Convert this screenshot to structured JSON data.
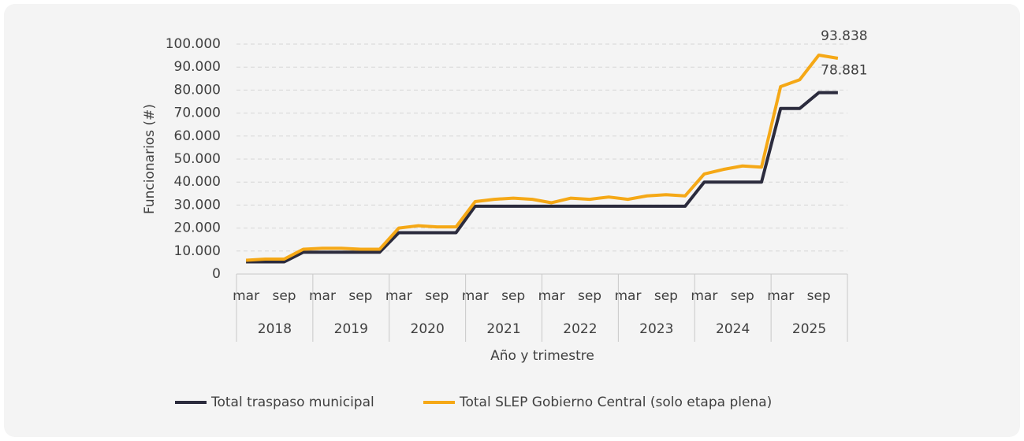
{
  "chart_data": {
    "type": "line",
    "x_label": "Año y trimestre",
    "y_label": "Funcionarios (#)",
    "categories": [
      "mar",
      null,
      "sep",
      null,
      "mar",
      null,
      "sep",
      null,
      "mar",
      null,
      "sep",
      null,
      "mar",
      null,
      "sep",
      null,
      "mar",
      null,
      "sep",
      null,
      "mar",
      null,
      "sep",
      null,
      "mar",
      null,
      "sep",
      null,
      "mar",
      null,
      "sep",
      null
    ],
    "groups": [
      "2018",
      "2019",
      "2020",
      "2021",
      "2022",
      "2023",
      "2024",
      "2025"
    ],
    "series": [
      {
        "name": "Total traspaso municipal",
        "color": "#2b2b3d",
        "values": [
          5300,
          5300,
          5300,
          9500,
          9500,
          9500,
          9500,
          9500,
          18000,
          18000,
          18000,
          18000,
          29500,
          29500,
          29500,
          29500,
          29500,
          29500,
          29500,
          29500,
          29500,
          29500,
          29500,
          29500,
          40000,
          40000,
          40000,
          40000,
          72000,
          72000,
          78881,
          78881
        ],
        "value_labels": [
          null,
          null,
          null,
          null,
          null,
          null,
          null,
          null,
          null,
          null,
          null,
          null,
          null,
          null,
          null,
          null,
          null,
          null,
          null,
          null,
          null,
          null,
          null,
          null,
          null,
          null,
          null,
          null,
          null,
          null,
          null,
          "78.881"
        ]
      },
      {
        "name": "Total SLEP Gobierno Central (solo etapa plena)",
        "color": "#f5a816",
        "values": [
          6000,
          6500,
          6500,
          10800,
          11200,
          11200,
          10800,
          10800,
          20000,
          21000,
          20500,
          20500,
          31500,
          32500,
          33000,
          32500,
          31000,
          33000,
          32500,
          33500,
          32500,
          34000,
          34500,
          34000,
          43500,
          45500,
          47000,
          46500,
          81500,
          84500,
          95200,
          93838
        ],
        "value_labels": [
          null,
          null,
          null,
          null,
          null,
          null,
          null,
          null,
          null,
          null,
          null,
          null,
          null,
          null,
          null,
          null,
          null,
          null,
          null,
          null,
          null,
          null,
          null,
          null,
          null,
          null,
          null,
          null,
          null,
          null,
          null,
          "93.838"
        ]
      }
    ],
    "ylim": [
      0,
      100000
    ],
    "yticks": [
      0,
      {
        "value": 10000,
        "label": "10.000"
      },
      {
        "value": 20000,
        "label": "20.000"
      },
      {
        "value": 30000,
        "label": "30.000"
      },
      {
        "value": 40000,
        "label": "40.000"
      },
      {
        "value": 50000,
        "label": "50.000"
      },
      {
        "value": 60000,
        "label": "60.000"
      },
      {
        "value": 70000,
        "label": "70.000"
      },
      {
        "value": 80000,
        "label": "80.000"
      },
      {
        "value": 90000,
        "label": "90.000"
      },
      {
        "value": 100000,
        "label": "100.000"
      }
    ],
    "grid": true,
    "legend": "bottom"
  }
}
